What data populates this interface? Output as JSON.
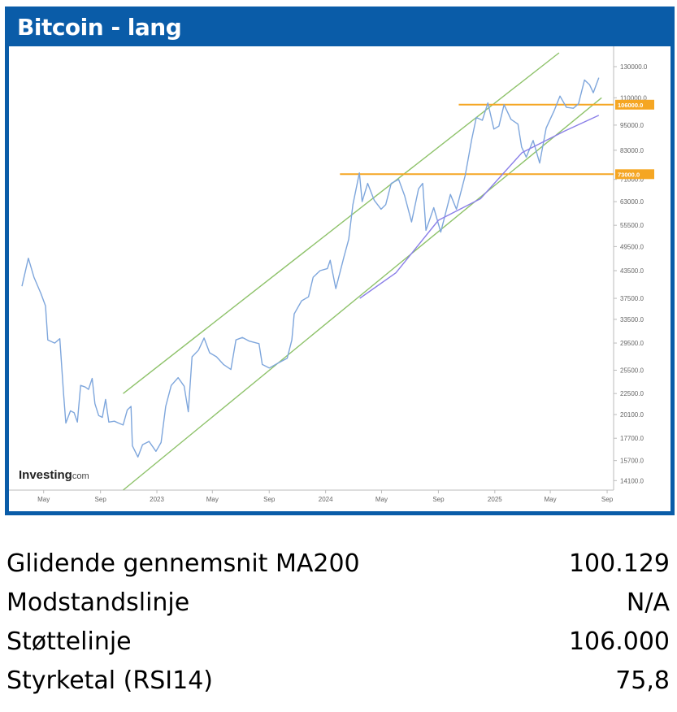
{
  "panel": {
    "title": "Bitcoin - lang",
    "header_color": "#0a5ca8"
  },
  "chart_data": {
    "type": "line",
    "title": "Bitcoin - lang",
    "watermark": "Investing.com",
    "x_tick_labels": [
      "May",
      "Sep",
      "2023",
      "May",
      "Sep",
      "2024",
      "May",
      "Sep",
      "2025",
      "May",
      "Sep"
    ],
    "y_tick_labels": [
      "130000.0",
      "110000.0",
      "95000.0",
      "83000.0",
      "71000.0",
      "63000.0",
      "55500.0",
      "49500.0",
      "43500.0",
      "37500.0",
      "33500.0",
      "29500.0",
      "25500.0",
      "22500.0",
      "20100.0",
      "17700.0",
      "15700.0",
      "14100.0"
    ],
    "y_scale": "log",
    "ylim": [
      13400,
      140000
    ],
    "grid": false,
    "colors": {
      "price": "#7ea6dc",
      "ma200": "#8a7fe8",
      "channel": "#8ec26a",
      "levels": "#f5a623"
    },
    "series": [
      {
        "style": "price",
        "points": [
          [
            "2022-03-15",
            40000
          ],
          [
            "2022-03-29",
            46500
          ],
          [
            "2022-04-10",
            42000
          ],
          [
            "2022-04-25",
            38500
          ],
          [
            "2022-05-05",
            36000
          ],
          [
            "2022-05-10",
            30000
          ],
          [
            "2022-05-25",
            29500
          ],
          [
            "2022-06-05",
            30200
          ],
          [
            "2022-06-13",
            22500
          ],
          [
            "2022-06-18",
            19200
          ],
          [
            "2022-06-28",
            20500
          ],
          [
            "2022-07-06",
            20300
          ],
          [
            "2022-07-13",
            19300
          ],
          [
            "2022-07-20",
            23500
          ],
          [
            "2022-07-30",
            23300
          ],
          [
            "2022-08-06",
            23000
          ],
          [
            "2022-08-14",
            24400
          ],
          [
            "2022-08-20",
            21300
          ],
          [
            "2022-08-28",
            20000
          ],
          [
            "2022-09-05",
            19800
          ],
          [
            "2022-09-12",
            21800
          ],
          [
            "2022-09-19",
            19300
          ],
          [
            "2022-10-01",
            19400
          ],
          [
            "2022-10-10",
            19200
          ],
          [
            "2022-10-20",
            19000
          ],
          [
            "2022-10-29",
            20600
          ],
          [
            "2022-11-06",
            21000
          ],
          [
            "2022-11-09",
            17000
          ],
          [
            "2022-11-21",
            16000
          ],
          [
            "2022-12-01",
            17100
          ],
          [
            "2022-12-15",
            17400
          ],
          [
            "2022-12-30",
            16500
          ],
          [
            "2023-01-10",
            17300
          ],
          [
            "2023-01-20",
            21000
          ],
          [
            "2023-02-01",
            23500
          ],
          [
            "2023-02-16",
            24500
          ],
          [
            "2023-03-01",
            23400
          ],
          [
            "2023-03-10",
            20400
          ],
          [
            "2023-03-18",
            27400
          ],
          [
            "2023-04-01",
            28400
          ],
          [
            "2023-04-13",
            30300
          ],
          [
            "2023-04-25",
            28000
          ],
          [
            "2023-05-10",
            27400
          ],
          [
            "2023-05-25",
            26300
          ],
          [
            "2023-06-10",
            25600
          ],
          [
            "2023-06-21",
            30000
          ],
          [
            "2023-07-05",
            30400
          ],
          [
            "2023-07-20",
            29800
          ],
          [
            "2023-08-10",
            29400
          ],
          [
            "2023-08-17",
            26300
          ],
          [
            "2023-09-01",
            25800
          ],
          [
            "2023-09-20",
            26500
          ],
          [
            "2023-10-10",
            27200
          ],
          [
            "2023-10-20",
            30000
          ],
          [
            "2023-10-25",
            34500
          ],
          [
            "2023-11-10",
            37000
          ],
          [
            "2023-11-25",
            37800
          ],
          [
            "2023-12-05",
            42000
          ],
          [
            "2023-12-20",
            43500
          ],
          [
            "2024-01-05",
            44000
          ],
          [
            "2024-01-11",
            46000
          ],
          [
            "2024-01-23",
            39500
          ],
          [
            "2024-02-10",
            47000
          ],
          [
            "2024-02-20",
            51500
          ],
          [
            "2024-02-29",
            62000
          ],
          [
            "2024-03-14",
            73500
          ],
          [
            "2024-03-20",
            63000
          ],
          [
            "2024-04-01",
            69500
          ],
          [
            "2024-04-15",
            63500
          ],
          [
            "2024-04-30",
            60500
          ],
          [
            "2024-05-10",
            62000
          ],
          [
            "2024-05-22",
            69500
          ],
          [
            "2024-06-07",
            71000
          ],
          [
            "2024-06-20",
            65000
          ],
          [
            "2024-07-05",
            56500
          ],
          [
            "2024-07-20",
            67500
          ],
          [
            "2024-07-29",
            69500
          ],
          [
            "2024-08-05",
            54000
          ],
          [
            "2024-08-22",
            61000
          ],
          [
            "2024-09-06",
            53500
          ],
          [
            "2024-09-27",
            65500
          ],
          [
            "2024-10-10",
            60500
          ],
          [
            "2024-10-29",
            72500
          ],
          [
            "2024-11-12",
            88000
          ],
          [
            "2024-11-22",
            99000
          ],
          [
            "2024-12-05",
            97500
          ],
          [
            "2024-12-17",
            107000
          ],
          [
            "2024-12-30",
            93000
          ],
          [
            "2025-01-10",
            94500
          ],
          [
            "2025-01-21",
            106000
          ],
          [
            "2025-02-05",
            98000
          ],
          [
            "2025-02-20",
            95500
          ],
          [
            "2025-02-28",
            84500
          ],
          [
            "2025-03-10",
            80000
          ],
          [
            "2025-03-25",
            87500
          ],
          [
            "2025-04-08",
            77500
          ],
          [
            "2025-04-22",
            93500
          ],
          [
            "2025-05-10",
            103000
          ],
          [
            "2025-05-22",
            111000
          ],
          [
            "2025-06-05",
            104500
          ],
          [
            "2025-06-20",
            104000
          ],
          [
            "2025-07-01",
            106500
          ],
          [
            "2025-07-14",
            121000
          ],
          [
            "2025-07-25",
            118000
          ],
          [
            "2025-08-02",
            113000
          ],
          [
            "2025-08-14",
            122500
          ]
        ]
      },
      {
        "style": "ma200",
        "points": [
          [
            "2024-03-15",
            37500
          ],
          [
            "2024-06-01",
            43000
          ],
          [
            "2024-09-01",
            57000
          ],
          [
            "2024-12-01",
            64000
          ],
          [
            "2025-03-01",
            82000
          ],
          [
            "2025-06-01",
            92000
          ],
          [
            "2025-08-14",
            100129
          ]
        ]
      }
    ],
    "trend_channel": [
      {
        "from": [
          "2022-10-20",
          22500
        ],
        "to": [
          "2025-05-20",
          140000
        ]
      },
      {
        "from": [
          "2022-10-20",
          13400
        ],
        "to": [
          "2025-08-20",
          110000
        ]
      }
    ],
    "horizontal_levels": [
      {
        "value": 106000,
        "label": "106000.0",
        "x_start": "2024-10-15"
      },
      {
        "value": 73000,
        "label": "73000.0",
        "x_start": "2024-02-01"
      }
    ]
  },
  "stats": [
    {
      "label": "Glidende gennemsnit MA200",
      "value": "100.129"
    },
    {
      "label": "Modstandslinje",
      "value": "N/A"
    },
    {
      "label": "Støttelinje",
      "value": "106.000"
    },
    {
      "label": "Styrketal (RSI14)",
      "value": "75,8"
    }
  ]
}
